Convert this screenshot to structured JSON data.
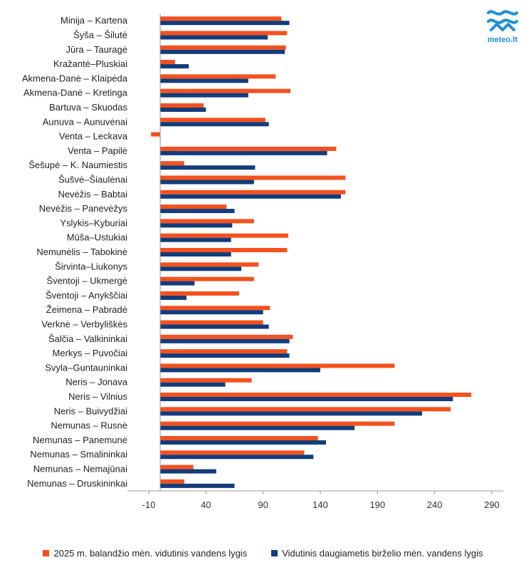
{
  "brand": {
    "logo_text": "meteo.lt",
    "logo_color": "#1e8fd6"
  },
  "colors": {
    "series_2025": "#f4511e",
    "series_avg": "#123c7a"
  },
  "legend": {
    "item1": "2025 m. balandžio mėn. vidutinis vandens lygis",
    "item2": "Vidutinis daugiametis birželio mėn. vandens lygis"
  },
  "chart_data": {
    "type": "bar",
    "orientation": "horizontal",
    "xlim": [
      -10,
      300
    ],
    "xticks": [
      -10,
      40,
      90,
      140,
      190,
      240,
      290
    ],
    "grid": false,
    "legend_position": "bottom",
    "categories": [
      "Minija – Kartena",
      "Šyša – Šilutė",
      "Jūra – Tauragė",
      "Kražantė–Pluskiai",
      "Akmena-Danė – Klaipėda",
      "Akmena-Danė – Kretinga",
      "Bartuva – Skuodas",
      "Aunuva – Aunuvėnai",
      "Venta – Leckava",
      "Venta – Papilė",
      "Šešupė – K. Naumiestis",
      "Šušvė–Šiaulėnai",
      "Nevėžis – Babtai",
      "Nevėžis – Panevėžys",
      "Yslykis–Kyburiai",
      "Mūša–Ustukiai",
      "Nemunėlis – Tabokinė",
      "Širvinta–Liukonys",
      "Šventoji – Ukmergė",
      "Šventoji – Anykščiai",
      "Žeimena – Pabradė",
      "Verknė – Verbyliškės",
      "Šalčia – Valkininkai",
      "Merkys – Puvočiai",
      "Svyla–Guntauninkai",
      "Neris – Jonava",
      "Neris – Vilnius",
      "Neris – Buivydžiai",
      "Nemunas – Rusnė",
      "Nemunas – Panemunė",
      "Nemunas – Smalininkai",
      "Nemunas – Nemajūnai",
      "Nemunas – Druskininkai"
    ],
    "series": [
      {
        "name": "2025 m. balandžio mėn. vidutinis vandens lygis",
        "values": [
          106,
          111,
          110,
          13,
          101,
          114,
          38,
          92,
          -8,
          154,
          21,
          162,
          162,
          58,
          82,
          112,
          111,
          86,
          82,
          69,
          96,
          90,
          116,
          111,
          205,
          80,
          272,
          254,
          205,
          138,
          126,
          29,
          21
        ]
      },
      {
        "name": "Vidutinis daugiametis birželio mėn. vandens lygis",
        "values": [
          113,
          94,
          109,
          25,
          77,
          77,
          40,
          95,
          0,
          146,
          83,
          82,
          158,
          65,
          63,
          62,
          62,
          71,
          30,
          23,
          90,
          95,
          113,
          113,
          140,
          57,
          256,
          229,
          170,
          145,
          134,
          49,
          65
        ]
      }
    ]
  }
}
